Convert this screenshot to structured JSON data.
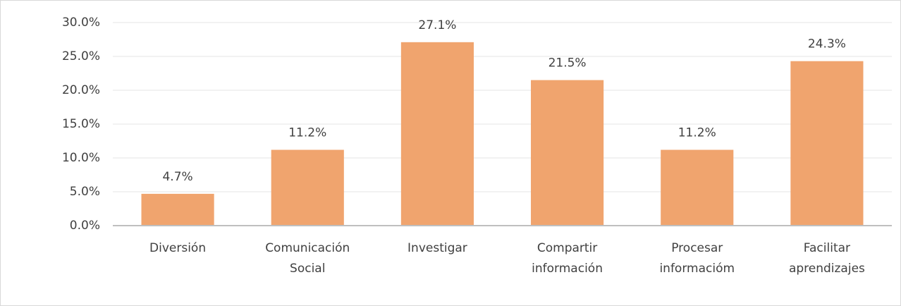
{
  "chart_data": {
    "type": "bar",
    "categories": [
      "Diversión",
      "Comunicación Social",
      "Investigar",
      "Compartir información",
      "Procesar informacióm",
      "Facilitar aprendizajes"
    ],
    "values": [
      4.7,
      11.2,
      27.1,
      21.5,
      11.2,
      24.3
    ],
    "value_labels": [
      "4.7%",
      "11.2%",
      "27.1%",
      "21.5%",
      "11.2%",
      "24.3%"
    ],
    "color": "#f0a46e",
    "ylim": [
      0,
      30
    ],
    "yticks": [
      {
        "value": 0,
        "label": "0.0%"
      },
      {
        "value": 5,
        "label": "5.0%"
      },
      {
        "value": 10,
        "label": "10.0%"
      },
      {
        "value": 15,
        "label": "15.0%"
      },
      {
        "value": 20,
        "label": "20.0%"
      },
      {
        "value": 25,
        "label": "25.0%"
      },
      {
        "value": 30,
        "label": "30.0%"
      }
    ],
    "grid": true
  }
}
